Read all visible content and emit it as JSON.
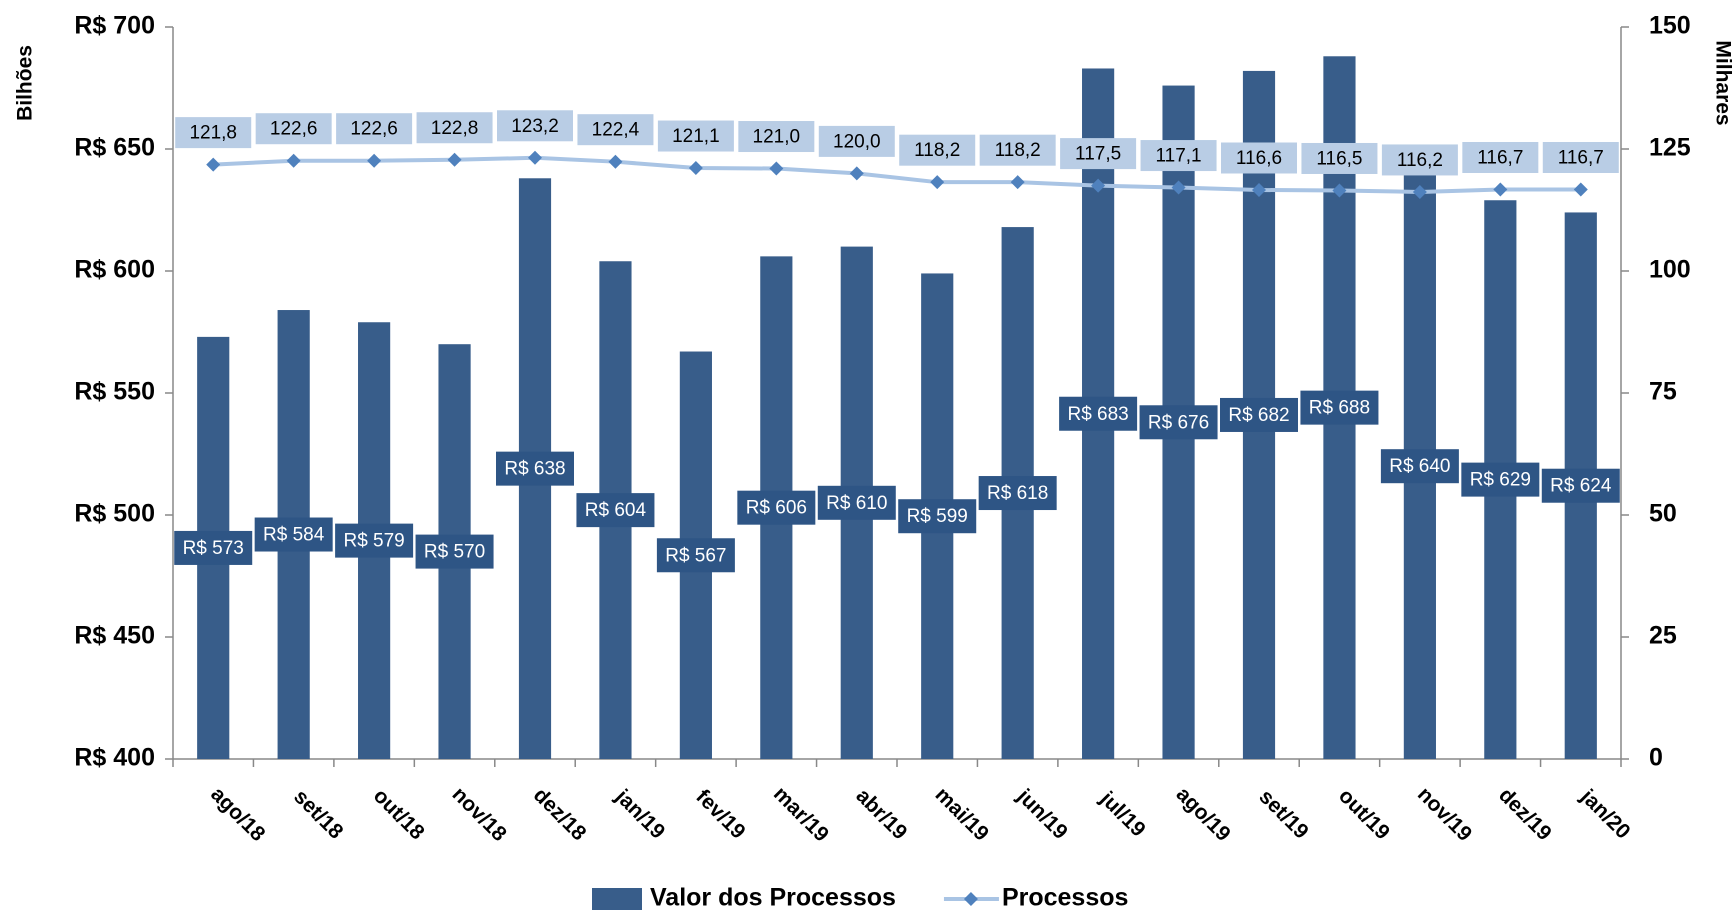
{
  "chart_data": {
    "type": "bar",
    "y_label": "Bilhões",
    "y2_label": "Milhares",
    "categories": [
      "ago/18",
      "set/18",
      "out/18",
      "nov/18",
      "dez/18",
      "jan/19",
      "fev/19",
      "mar/19",
      "abr/19",
      "mai/19",
      "jun/19",
      "jul/19",
      "ago/19",
      "set/19",
      "out/19",
      "nov/19",
      "dez/19",
      "jan/20"
    ],
    "series": [
      {
        "name": "Valor dos Processos",
        "type": "bar",
        "color": "#385d8a",
        "values": [
          573,
          584,
          579,
          570,
          638,
          604,
          567,
          606,
          610,
          599,
          618,
          683,
          676,
          682,
          688,
          640,
          629,
          624
        ],
        "value_labels": [
          "R$ 573",
          "R$ 584",
          "R$ 579",
          "R$ 570",
          "R$ 638",
          "R$ 604",
          "R$ 567",
          "R$ 606",
          "R$ 610",
          "R$ 599",
          "R$ 618",
          "R$ 683",
          "R$ 676",
          "R$ 682",
          "R$ 688",
          "R$ 640",
          "R$ 629",
          "R$ 624"
        ]
      },
      {
        "name": "Processos",
        "type": "line",
        "axis": "y2",
        "color": "#a9c4e4",
        "marker_color": "#4f81bd",
        "values": [
          121.8,
          122.6,
          122.6,
          122.8,
          123.2,
          122.4,
          121.1,
          121.0,
          120.0,
          118.2,
          118.2,
          117.5,
          117.1,
          116.6,
          116.5,
          116.2,
          116.7,
          116.7
        ],
        "value_labels": [
          "121,8",
          "122,6",
          "122,6",
          "122,8",
          "123,2",
          "122,4",
          "121,1",
          "121,0",
          "120,0",
          "118,2",
          "118,2",
          "117,5",
          "117,1",
          "116,6",
          "116,5",
          "116,2",
          "116,7",
          "116,7"
        ]
      }
    ],
    "ylim": [
      400,
      700
    ],
    "yticks": [
      {
        "value": 400,
        "label": "R$ 400"
      },
      {
        "value": 450,
        "label": "R$ 450"
      },
      {
        "value": 500,
        "label": "R$ 500"
      },
      {
        "value": 550,
        "label": "R$ 550"
      },
      {
        "value": 600,
        "label": "R$ 600"
      },
      {
        "value": 650,
        "label": "R$ 650"
      },
      {
        "value": 700,
        "label": "R$ 700"
      }
    ],
    "y2lim": [
      0,
      150
    ],
    "y2ticks": [
      0,
      25,
      50,
      75,
      100,
      125,
      150
    ],
    "grid": false
  }
}
